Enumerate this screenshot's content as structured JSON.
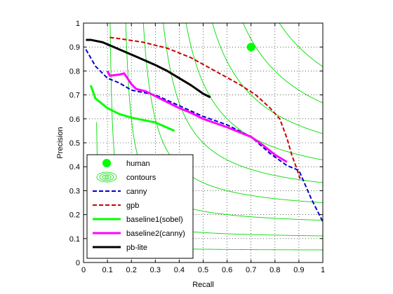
{
  "chart_data": {
    "type": "line",
    "title": "",
    "xlabel": "Recall",
    "ylabel": "Precision",
    "xlim": [
      0,
      1
    ],
    "ylim": [
      0,
      1
    ],
    "xticks": [
      "0",
      "0.1",
      "0.2",
      "0.3",
      "0.4",
      "0.5",
      "0.6",
      "0.7",
      "0.8",
      "0.9",
      "1"
    ],
    "yticks": [
      "0",
      "0.1",
      "0.2",
      "0.3",
      "0.4",
      "0.5",
      "0.6",
      "0.7",
      "0.8",
      "0.9",
      "1"
    ],
    "grid": "dotted",
    "legend_position": "bottom-left",
    "contour_f_values": [
      0.1,
      0.2,
      0.3,
      0.4,
      0.5,
      0.6,
      0.7,
      0.8,
      0.9
    ],
    "colors": {
      "human": "#00ff00",
      "contours": "#00dd00",
      "canny": "#0000cc",
      "gpb": "#cc0000",
      "baseline1": "#00ff00",
      "baseline2": "#ff00ff",
      "pblite": "#000000"
    },
    "legend": [
      {
        "key": "human",
        "label": "human",
        "style": "marker"
      },
      {
        "key": "contours",
        "label": "contours",
        "style": "contour"
      },
      {
        "key": "canny",
        "label": "canny",
        "style": "dashed"
      },
      {
        "key": "gpb",
        "label": "gpb",
        "style": "dashed"
      },
      {
        "key": "baseline1",
        "label": "baseline1(sobel)",
        "style": "solid"
      },
      {
        "key": "baseline2",
        "label": "baseline2(canny)",
        "style": "solid"
      },
      {
        "key": "pblite",
        "label": "pb-lite",
        "style": "solid"
      }
    ],
    "human_point": {
      "x": 0.7,
      "y": 0.9
    },
    "series": [
      {
        "key": "gpb",
        "name": "gpb",
        "dash": "dashed",
        "points": [
          [
            0.11,
            0.94
          ],
          [
            0.15,
            0.935
          ],
          [
            0.25,
            0.92
          ],
          [
            0.35,
            0.895
          ],
          [
            0.45,
            0.855
          ],
          [
            0.55,
            0.8
          ],
          [
            0.65,
            0.745
          ],
          [
            0.72,
            0.7
          ],
          [
            0.78,
            0.645
          ],
          [
            0.82,
            0.6
          ],
          [
            0.85,
            0.52
          ],
          [
            0.87,
            0.45
          ],
          [
            0.89,
            0.395
          ],
          [
            0.905,
            0.35
          ]
        ]
      },
      {
        "key": "canny",
        "name": "canny",
        "dash": "dashed",
        "points": [
          [
            0.01,
            0.89
          ],
          [
            0.05,
            0.82
          ],
          [
            0.1,
            0.77
          ],
          [
            0.15,
            0.75
          ],
          [
            0.2,
            0.72
          ],
          [
            0.3,
            0.7
          ],
          [
            0.4,
            0.655
          ],
          [
            0.5,
            0.61
          ],
          [
            0.6,
            0.575
          ],
          [
            0.7,
            0.525
          ],
          [
            0.78,
            0.455
          ],
          [
            0.85,
            0.405
          ],
          [
            0.9,
            0.385
          ],
          [
            0.95,
            0.27
          ],
          [
            1.0,
            0.17
          ]
        ]
      },
      {
        "key": "baseline1",
        "name": "baseline1(sobel)",
        "dash": "solid",
        "points": [
          [
            0.03,
            0.74
          ],
          [
            0.05,
            0.685
          ],
          [
            0.1,
            0.645
          ],
          [
            0.15,
            0.62
          ],
          [
            0.2,
            0.605
          ],
          [
            0.3,
            0.585
          ],
          [
            0.38,
            0.55
          ]
        ]
      },
      {
        "key": "baseline2",
        "name": "baseline2(canny)",
        "dash": "solid",
        "points": [
          [
            0.1,
            0.8
          ],
          [
            0.11,
            0.78
          ],
          [
            0.15,
            0.785
          ],
          [
            0.17,
            0.79
          ],
          [
            0.2,
            0.745
          ],
          [
            0.22,
            0.725
          ],
          [
            0.26,
            0.715
          ],
          [
            0.3,
            0.695
          ],
          [
            0.35,
            0.67
          ],
          [
            0.4,
            0.645
          ],
          [
            0.45,
            0.625
          ],
          [
            0.5,
            0.6
          ],
          [
            0.6,
            0.565
          ],
          [
            0.7,
            0.525
          ],
          [
            0.75,
            0.49
          ],
          [
            0.8,
            0.45
          ],
          [
            0.85,
            0.42
          ]
        ]
      },
      {
        "key": "pblite",
        "name": "pb-lite",
        "dash": "solid",
        "points": [
          [
            0.01,
            0.93
          ],
          [
            0.03,
            0.93
          ],
          [
            0.08,
            0.92
          ],
          [
            0.15,
            0.89
          ],
          [
            0.22,
            0.86
          ],
          [
            0.3,
            0.825
          ],
          [
            0.35,
            0.8
          ],
          [
            0.4,
            0.77
          ],
          [
            0.45,
            0.74
          ],
          [
            0.5,
            0.705
          ],
          [
            0.53,
            0.69
          ]
        ]
      }
    ]
  }
}
